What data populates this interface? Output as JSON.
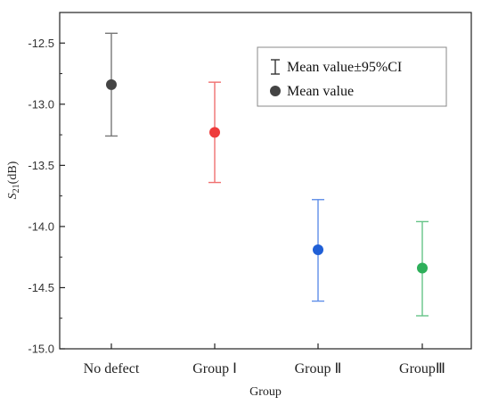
{
  "chart_data": {
    "type": "scatter",
    "title": "",
    "xlabel": "Group",
    "ylabel": {
      "base": "S",
      "sub": "21",
      "unit": "(dB)"
    },
    "categories": [
      "No defect",
      "Group Ⅰ",
      "Group Ⅱ",
      "GroupⅢ"
    ],
    "mean": [
      -12.84,
      -13.23,
      -14.19,
      -14.34
    ],
    "ci_low": [
      -13.26,
      -13.64,
      -14.61,
      -14.73
    ],
    "ci_high": [
      -12.42,
      -12.82,
      -13.78,
      -13.96
    ],
    "colors": [
      "#444444",
      "#ee3b3b",
      "#1f5fd6",
      "#2eaf5a"
    ],
    "ci_colors": [
      "#777777",
      "#f07070",
      "#5f8fe8",
      "#66c488"
    ],
    "ylim": [
      -15.0,
      -12.25
    ],
    "yticks": [
      -12.5,
      -13.0,
      -13.5,
      -14.0,
      -14.5,
      -15.0
    ],
    "ytick_labels": [
      "-12.5",
      "-13.0",
      "-13.5",
      "-14.0",
      "-14.5",
      "-15.0"
    ],
    "grid": false,
    "legend": {
      "placement": "top-right",
      "entries": [
        {
          "marker": "errorbar",
          "label": "Mean value±95%CI"
        },
        {
          "marker": "dot",
          "label": "Mean value"
        }
      ]
    }
  }
}
